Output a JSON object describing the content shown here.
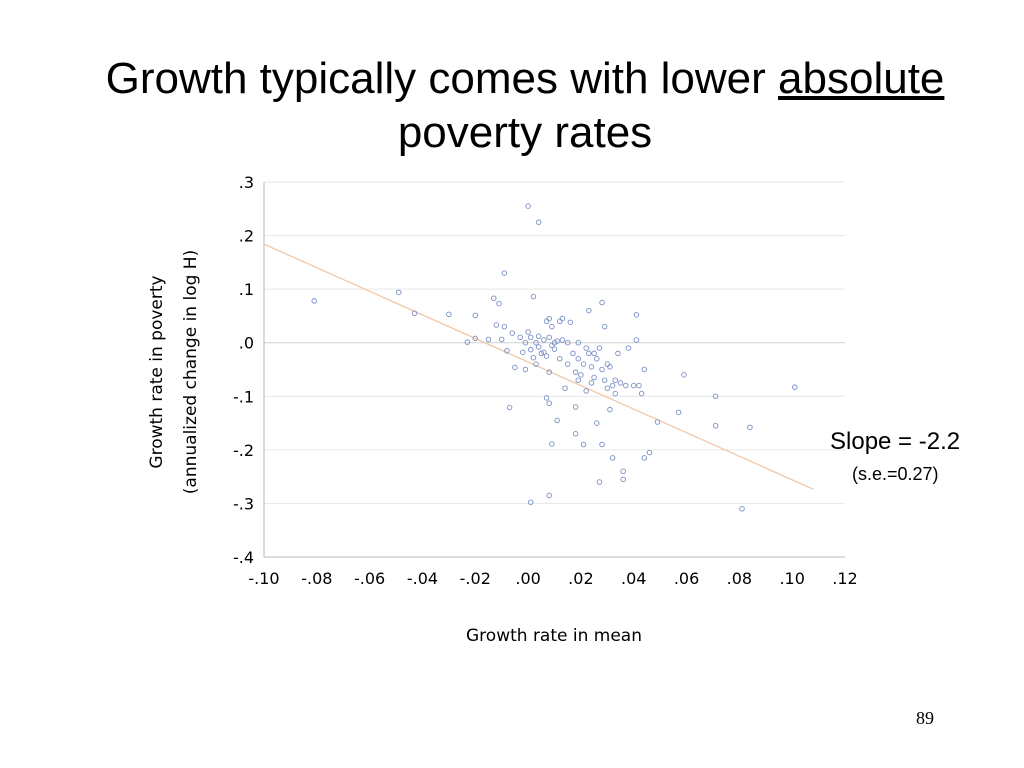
{
  "slide": {
    "title_part1": "Growth typically comes with lower ",
    "title_underlined": "absolute",
    "title_part2": "poverty rates",
    "slope_label": "Slope = -2.2",
    "se_label": "(s.e.=0.27)",
    "page_number": "89"
  },
  "chart_data": {
    "type": "scatter",
    "xlabel": "Growth rate in mean",
    "ylabel_line1": "Growth rate in poverty",
    "ylabel_line2": "(annualized change in log H)",
    "xlim": [
      -0.1,
      0.12
    ],
    "ylim": [
      -0.4,
      0.3
    ],
    "x_ticks": [
      -0.1,
      -0.08,
      -0.06,
      -0.04,
      -0.02,
      0.0,
      0.02,
      0.04,
      0.06,
      0.08,
      0.1,
      0.12
    ],
    "x_tick_labels": [
      "-.10",
      "-.08",
      "-.06",
      "-.04",
      "-.02",
      ".00",
      ".02",
      ".04",
      ".06",
      ".08",
      ".10",
      ".12"
    ],
    "y_ticks": [
      0.3,
      0.2,
      0.1,
      0.0,
      -0.1,
      -0.2,
      -0.3,
      -0.4
    ],
    "y_tick_labels": [
      ".3",
      ".2",
      ".1",
      ".0",
      "-.1",
      "-.2",
      "-.3",
      "-.4"
    ],
    "grid": true,
    "trend_line": {
      "slope": -2.2,
      "intercept": -0.036
    },
    "colors": {
      "points": "#7a8fc8",
      "trend": "#f0c8a8",
      "grid": "#e6e6e6",
      "axis": "#b8b8b8"
    },
    "points": [
      [
        -0.081,
        0.078
      ],
      [
        -0.049,
        0.094
      ],
      [
        -0.043,
        0.055
      ],
      [
        -0.03,
        0.053
      ],
      [
        -0.023,
        0.001
      ],
      [
        -0.02,
        0.051
      ],
      [
        -0.02,
        0.008
      ],
      [
        -0.015,
        0.006
      ],
      [
        -0.013,
        0.083
      ],
      [
        -0.012,
        0.033
      ],
      [
        -0.011,
        0.073
      ],
      [
        -0.01,
        0.006
      ],
      [
        -0.009,
        0.13
      ],
      [
        -0.009,
        0.03
      ],
      [
        -0.008,
        -0.015
      ],
      [
        -0.007,
        -0.121
      ],
      [
        -0.006,
        0.018
      ],
      [
        -0.005,
        -0.046
      ],
      [
        -0.003,
        0.01
      ],
      [
        -0.002,
        -0.018
      ],
      [
        -0.001,
        0.0
      ],
      [
        -0.001,
        -0.05
      ],
      [
        0.0,
        0.255
      ],
      [
        0.0,
        0.02
      ],
      [
        0.001,
        0.01
      ],
      [
        0.001,
        -0.298
      ],
      [
        0.001,
        -0.013
      ],
      [
        0.002,
        0.086
      ],
      [
        0.002,
        -0.028
      ],
      [
        0.003,
        0.0
      ],
      [
        0.003,
        -0.04
      ],
      [
        0.004,
        0.225
      ],
      [
        0.004,
        0.012
      ],
      [
        0.004,
        -0.008
      ],
      [
        0.005,
        -0.02
      ],
      [
        0.006,
        0.005
      ],
      [
        0.006,
        -0.018
      ],
      [
        0.007,
        0.04
      ],
      [
        0.007,
        -0.025
      ],
      [
        0.007,
        -0.103
      ],
      [
        0.008,
        0.045
      ],
      [
        0.008,
        0.01
      ],
      [
        0.008,
        -0.055
      ],
      [
        0.008,
        -0.113
      ],
      [
        0.008,
        -0.285
      ],
      [
        0.009,
        0.03
      ],
      [
        0.009,
        -0.005
      ],
      [
        0.009,
        -0.189
      ],
      [
        0.01,
        0.0
      ],
      [
        0.01,
        -0.012
      ],
      [
        0.011,
        0.003
      ],
      [
        0.011,
        -0.145
      ],
      [
        0.012,
        0.04
      ],
      [
        0.012,
        -0.03
      ],
      [
        0.013,
        0.045
      ],
      [
        0.013,
        0.005
      ],
      [
        0.014,
        -0.085
      ],
      [
        0.015,
        0.0
      ],
      [
        0.015,
        -0.04
      ],
      [
        0.016,
        0.038
      ],
      [
        0.017,
        -0.02
      ],
      [
        0.018,
        -0.055
      ],
      [
        0.018,
        -0.12
      ],
      [
        0.018,
        -0.17
      ],
      [
        0.019,
        0.0
      ],
      [
        0.019,
        -0.03
      ],
      [
        0.019,
        -0.07
      ],
      [
        0.02,
        -0.06
      ],
      [
        0.021,
        -0.04
      ],
      [
        0.021,
        -0.19
      ],
      [
        0.022,
        -0.01
      ],
      [
        0.022,
        -0.09
      ],
      [
        0.023,
        0.06
      ],
      [
        0.023,
        -0.02
      ],
      [
        0.024,
        -0.045
      ],
      [
        0.024,
        -0.075
      ],
      [
        0.025,
        -0.02
      ],
      [
        0.025,
        -0.065
      ],
      [
        0.026,
        -0.03
      ],
      [
        0.026,
        -0.15
      ],
      [
        0.027,
        -0.01
      ],
      [
        0.027,
        -0.26
      ],
      [
        0.028,
        0.075
      ],
      [
        0.028,
        -0.05
      ],
      [
        0.028,
        -0.19
      ],
      [
        0.029,
        -0.07
      ],
      [
        0.029,
        0.03
      ],
      [
        0.03,
        -0.04
      ],
      [
        0.03,
        -0.085
      ],
      [
        0.031,
        -0.125
      ],
      [
        0.031,
        -0.045
      ],
      [
        0.032,
        -0.08
      ],
      [
        0.032,
        -0.215
      ],
      [
        0.033,
        -0.095
      ],
      [
        0.033,
        -0.07
      ],
      [
        0.034,
        -0.02
      ],
      [
        0.035,
        -0.075
      ],
      [
        0.036,
        -0.24
      ],
      [
        0.036,
        -0.255
      ],
      [
        0.037,
        -0.08
      ],
      [
        0.038,
        -0.01
      ],
      [
        0.04,
        -0.08
      ],
      [
        0.041,
        0.005
      ],
      [
        0.041,
        0.052
      ],
      [
        0.042,
        -0.08
      ],
      [
        0.043,
        -0.095
      ],
      [
        0.044,
        -0.05
      ],
      [
        0.044,
        -0.215
      ],
      [
        0.046,
        -0.205
      ],
      [
        0.049,
        -0.148
      ],
      [
        0.057,
        -0.13
      ],
      [
        0.059,
        -0.06
      ],
      [
        0.071,
        -0.1
      ],
      [
        0.071,
        -0.155
      ],
      [
        0.081,
        -0.31
      ],
      [
        0.084,
        -0.158
      ],
      [
        0.101,
        -0.083
      ]
    ]
  }
}
